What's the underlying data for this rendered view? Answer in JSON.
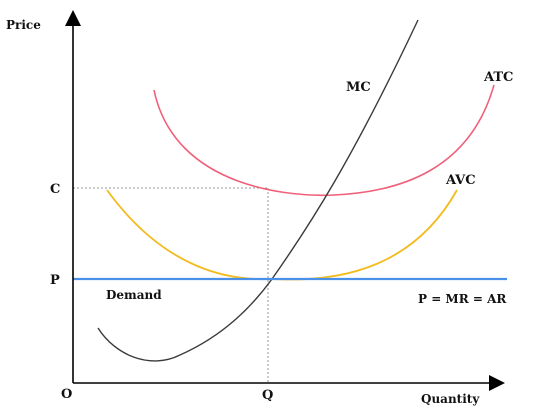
{
  "axes": {
    "y_label": "Price",
    "x_label": "Quantity",
    "origin_label": "O",
    "y_ticks": [
      "C",
      "P"
    ],
    "x_ticks": [
      "Q"
    ]
  },
  "curves": {
    "mc": {
      "label": "MC",
      "color": "#3a3a3a"
    },
    "atc": {
      "label": "ATC",
      "color": "#f0607a"
    },
    "avc": {
      "label": "AVC",
      "color": "#f2bb1e"
    },
    "demand": {
      "label": "Demand",
      "equation": "P = MR = AR",
      "color": "#4a90e8"
    }
  },
  "guides": {
    "color": "#9a9a9a"
  }
}
